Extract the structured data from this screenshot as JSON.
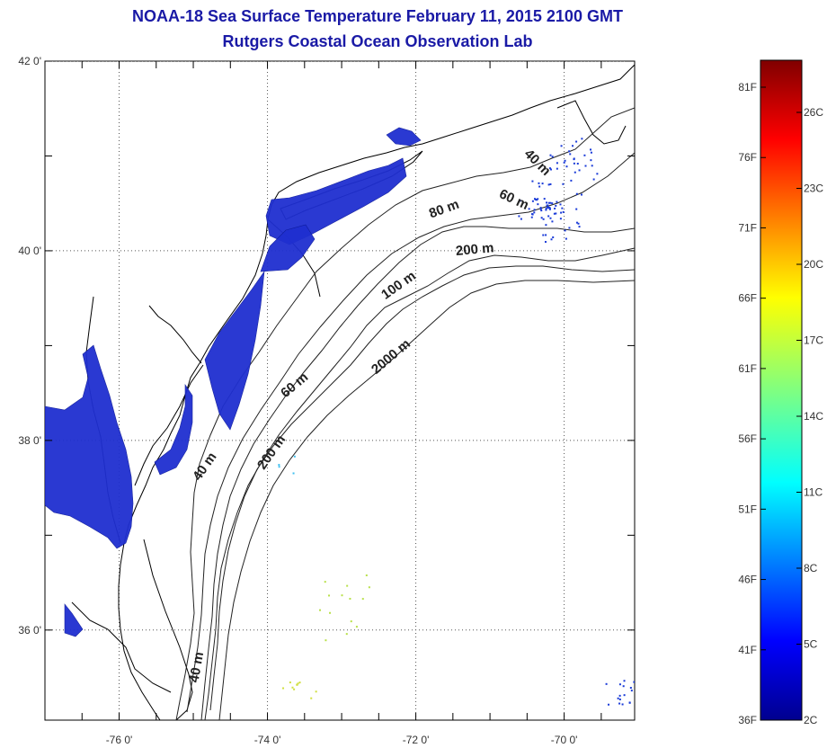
{
  "title": {
    "line1": "NOAA-18 Sea Surface Temperature February 11, 2015 2100 GMT",
    "line2": "Rutgers Coastal Ocean Observation Lab"
  },
  "map": {
    "lat_ticks": [
      {
        "lat": 42,
        "label": "42 0'"
      },
      {
        "lat": 40,
        "label": "40 0'"
      },
      {
        "lat": 38,
        "label": "38 0'"
      },
      {
        "lat": 36,
        "label": "36 0'"
      }
    ],
    "lon_ticks": [
      {
        "lon": -76,
        "label": "-76 0'"
      },
      {
        "lon": -74,
        "label": "-74 0'"
      },
      {
        "lon": -72,
        "label": "-72 0'"
      },
      {
        "lon": -70,
        "label": "-70 0'"
      }
    ],
    "contour_labels": [
      {
        "text": "40 m",
        "lon": -70.4,
        "lat": 40.9,
        "rot": 45
      },
      {
        "text": "60 m",
        "lon": -70.7,
        "lat": 40.5,
        "rot": 25
      },
      {
        "text": "80 m",
        "lon": -71.6,
        "lat": 40.4,
        "rot": -20
      },
      {
        "text": "200 m",
        "lon": -71.2,
        "lat": 39.97,
        "rot": -5
      },
      {
        "text": "100 m",
        "lon": -72.2,
        "lat": 39.6,
        "rot": -35
      },
      {
        "text": "2000 m",
        "lon": -72.3,
        "lat": 38.85,
        "rot": -40
      },
      {
        "text": "60 m",
        "lon": -73.6,
        "lat": 38.55,
        "rot": -40
      },
      {
        "text": "40 m",
        "lon": -74.8,
        "lat": 37.7,
        "rot": -55
      },
      {
        "text": "200 m",
        "lon": -73.9,
        "lat": 37.85,
        "rot": -55
      },
      {
        "text": "40 m",
        "lon": -74.9,
        "lat": 35.6,
        "rot": -80
      }
    ]
  },
  "colorbar": {
    "f_labels": [
      "81F",
      "76F",
      "71F",
      "66F",
      "61F",
      "56F",
      "51F",
      "46F",
      "41F",
      "36F"
    ],
    "c_labels": [
      "26C",
      "23C",
      "20C",
      "17C",
      "14C",
      "11C",
      "8C",
      "5C",
      "2C"
    ]
  },
  "colors": {
    "water_sst": "#1f2fd0",
    "water_sst_dark": "#0d1a9a",
    "title": "#1a1aa6"
  }
}
